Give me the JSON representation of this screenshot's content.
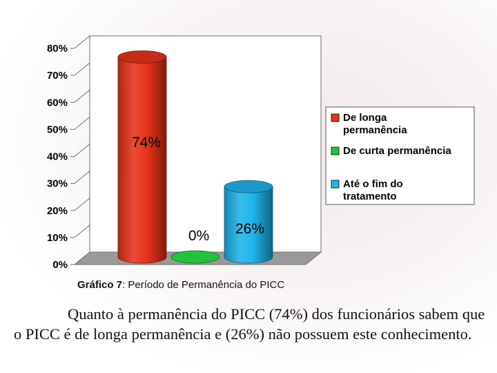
{
  "chart_data": {
    "type": "bar",
    "style": "3d-cylinder",
    "categories": [
      "De longa permanência",
      "De curta permanência",
      "Até o fim do tratamento"
    ],
    "values": [
      74,
      0,
      26
    ],
    "data_labels": [
      "74%",
      "0%",
      "26%"
    ],
    "colors": [
      "#e8321a",
      "#22c33a",
      "#1fb4ea"
    ],
    "y_ticks": [
      "0%",
      "10%",
      "20%",
      "30%",
      "40%",
      "50%",
      "60%",
      "70%",
      "80%"
    ],
    "ylim": [
      0,
      80
    ],
    "grid": false,
    "legend_position": "right",
    "legend": [
      {
        "label_lines": [
          "De longa",
          "permanência"
        ],
        "color": "#e8321a"
      },
      {
        "label_lines": [
          "De curta permanência"
        ],
        "color": "#22c33a"
      },
      {
        "label_lines": [
          "Até o fim do",
          "tratamento"
        ],
        "color": "#1fb4ea"
      }
    ]
  },
  "caption": {
    "prefix": "Gráfico 7",
    "text": ": Período de Permanência do PICC"
  },
  "paragraph": "Quanto à permanência do PICC (74%) dos funcionários sabem que o PICC é de longa permanência e (26%) não possuem este conhecimento."
}
